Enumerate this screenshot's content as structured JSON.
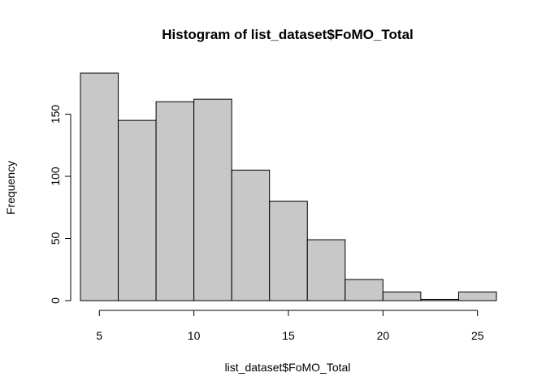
{
  "chart_data": {
    "type": "histogram",
    "title": "Histogram of list_dataset$FoMO_Total",
    "xlabel": "list_dataset$FoMO_Total",
    "ylabel": "Frequency",
    "bins": [
      {
        "start": 4,
        "end": 6,
        "count": 183
      },
      {
        "start": 6,
        "end": 8,
        "count": 145
      },
      {
        "start": 8,
        "end": 10,
        "count": 160
      },
      {
        "start": 10,
        "end": 12,
        "count": 162
      },
      {
        "start": 12,
        "end": 14,
        "count": 105
      },
      {
        "start": 14,
        "end": 16,
        "count": 80
      },
      {
        "start": 16,
        "end": 18,
        "count": 49
      },
      {
        "start": 18,
        "end": 20,
        "count": 17
      },
      {
        "start": 20,
        "end": 22,
        "count": 7
      },
      {
        "start": 22,
        "end": 24,
        "count": 1
      },
      {
        "start": 24,
        "end": 26,
        "count": 7
      }
    ],
    "xlim": [
      4,
      26
    ],
    "ylim": [
      0,
      183
    ],
    "x_ticks": [
      5,
      10,
      15,
      20,
      25
    ],
    "y_ticks": [
      0,
      50,
      100,
      150
    ],
    "grid": false,
    "bar_color": "#c8c8c8",
    "edge_color": "#000000"
  }
}
